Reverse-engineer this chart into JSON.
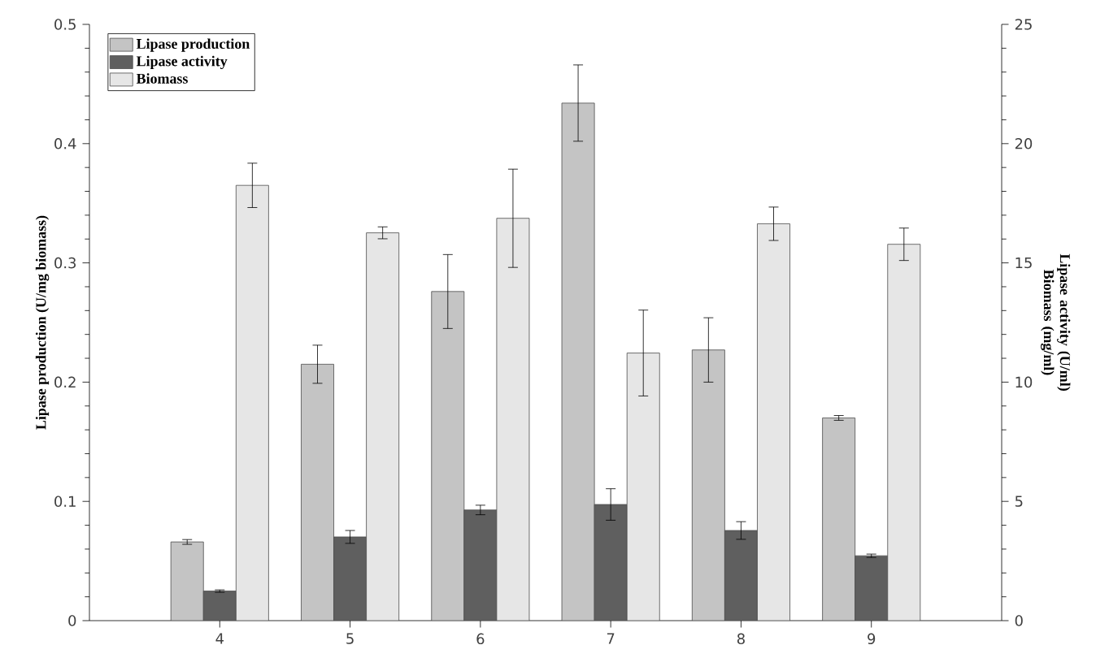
{
  "chart_data": {
    "type": "bar",
    "x": [
      4,
      5,
      6,
      7,
      8,
      9
    ],
    "xlim": [
      3,
      10
    ],
    "xticks": [
      4,
      5,
      6,
      7,
      8,
      9
    ],
    "ylim": [
      0,
      0.5
    ],
    "yticks": [
      0,
      0.1,
      0.2,
      0.3,
      0.4,
      0.5
    ],
    "y2lim": [
      0,
      25
    ],
    "y2ticks": [
      0,
      5,
      10,
      15,
      20,
      25
    ],
    "ylabel": "Lipase production (U/mg biomass)",
    "y2label": "Lipase activity (U/ml) Biomass (mg/ml)",
    "legend": "top left",
    "grid": false,
    "series": [
      {
        "name": "Lipase production",
        "color": "#c4c4c4",
        "values": [
          0.066,
          0.215,
          0.276,
          0.434,
          0.227,
          0.17
        ],
        "errors": [
          0.002,
          0.016,
          0.031,
          0.032,
          0.027,
          0.002
        ]
      },
      {
        "name": "Lipase activity",
        "color": "#5f5f5f",
        "axis": "y2",
        "values": [
          1.24,
          3.51,
          4.64,
          4.87,
          3.78,
          2.72
        ],
        "errors": [
          0.05,
          0.27,
          0.2,
          0.66,
          0.37,
          0.07
        ]
      },
      {
        "name": "Biomass",
        "color": "#e6e6e6",
        "axis": "y2",
        "values": [
          18.25,
          16.26,
          16.87,
          11.22,
          16.64,
          15.78
        ],
        "errors": [
          0.93,
          0.25,
          2.06,
          1.8,
          0.7,
          0.68
        ]
      }
    ]
  }
}
